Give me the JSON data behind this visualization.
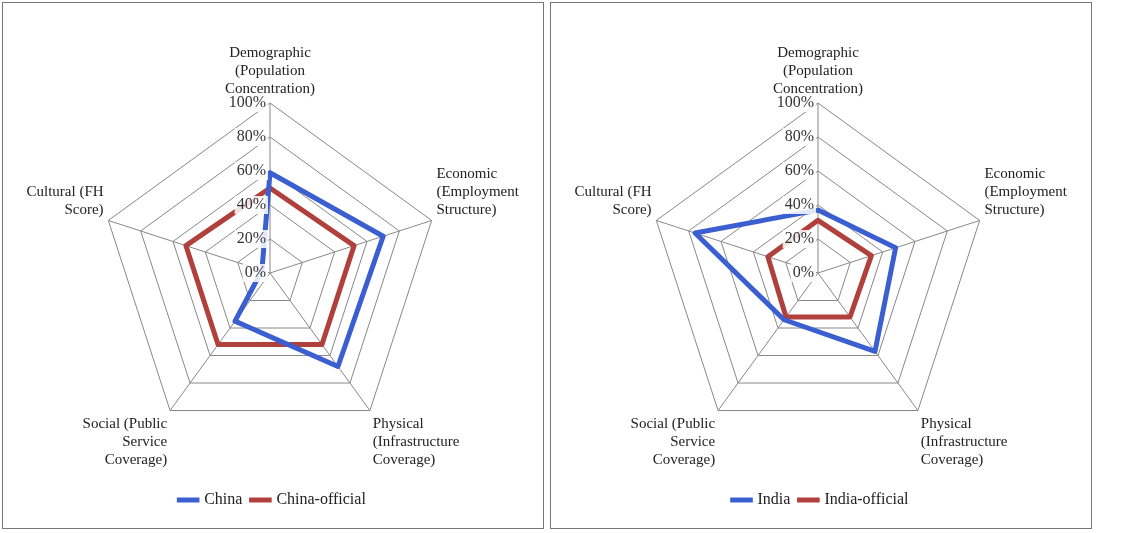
{
  "chart_data": [
    {
      "type": "radar",
      "categories": [
        "Demographic (Population Concentration)",
        "Economic (Employment Structure)",
        "Physical (Infrastructure Coverage)",
        "Social (Public Service Coverage)",
        "Cultural (FH Score)"
      ],
      "series": [
        {
          "name": "China",
          "color": "#3b5fd0",
          "values": [
            59,
            70,
            68,
            35,
            5
          ]
        },
        {
          "name": "China-official",
          "color": "#b0403c",
          "values": [
            50,
            52,
            52,
            52,
            52
          ]
        }
      ],
      "ylim": [
        0,
        100
      ],
      "yticks": [
        {
          "value": 0,
          "label": "0%"
        },
        {
          "value": 20,
          "label": "20%"
        },
        {
          "value": 40,
          "label": "40%"
        },
        {
          "value": 60,
          "label": "60%"
        },
        {
          "value": 80,
          "label": "80%"
        },
        {
          "value": 100,
          "label": "100%"
        }
      ],
      "grid": true,
      "legend": "bottom",
      "marker": "none"
    },
    {
      "type": "radar",
      "categories": [
        "Demographic (Population Concentration)",
        "Economic (Employment Structure)",
        "Physical (Infrastructure Coverage)",
        "Social (Public Service Coverage)",
        "Cultural (FH Score)"
      ],
      "series": [
        {
          "name": "India",
          "color": "#3b5fd0",
          "values": [
            37,
            48,
            57,
            34,
            76
          ]
        },
        {
          "name": "India-official",
          "color": "#b0403c",
          "values": [
            31,
            33,
            32,
            32,
            31
          ]
        }
      ],
      "ylim": [
        0,
        100
      ],
      "yticks": [
        {
          "value": 0,
          "label": "0%"
        },
        {
          "value": 20,
          "label": "20%"
        },
        {
          "value": 40,
          "label": "40%"
        },
        {
          "value": 60,
          "label": "60%"
        },
        {
          "value": 80,
          "label": "80%"
        },
        {
          "value": 100,
          "label": "100%"
        }
      ],
      "grid": true,
      "legend": "bottom",
      "marker": "none"
    }
  ]
}
